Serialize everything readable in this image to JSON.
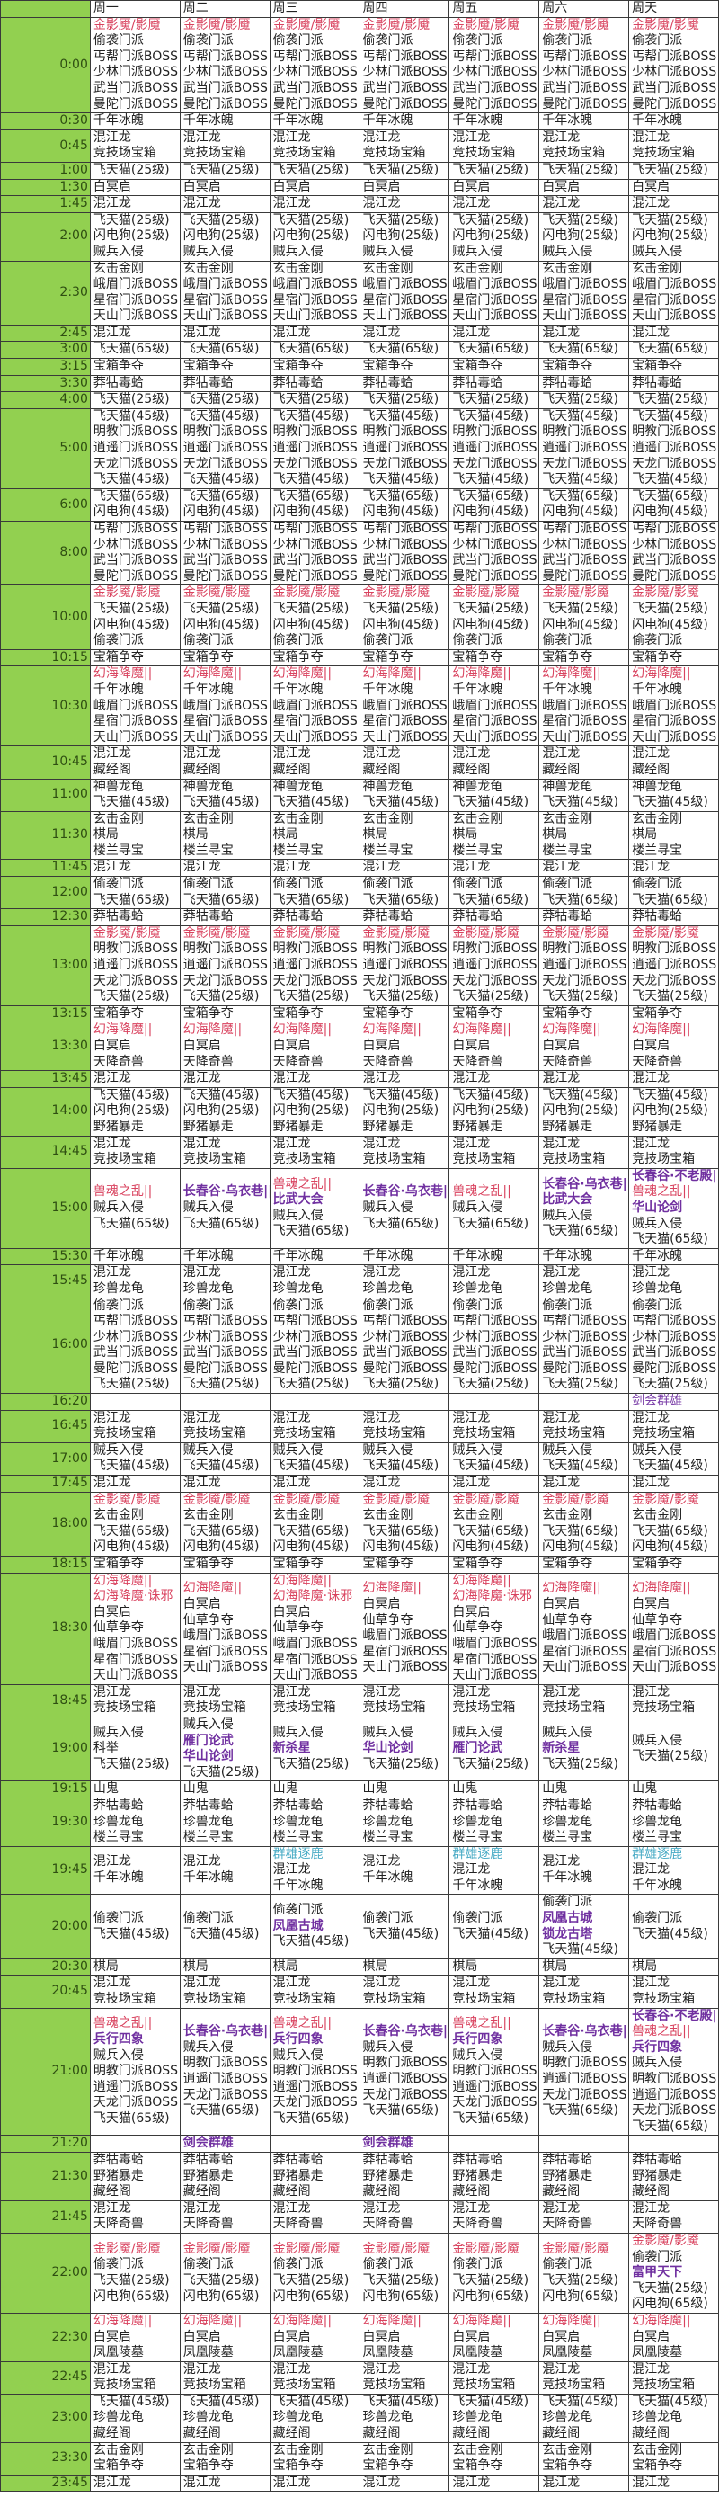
{
  "header": {
    "days": [
      "周一",
      "周二",
      "周三",
      "周四",
      "周五",
      "周六",
      "周天"
    ]
  },
  "colors": {
    "red": "#d9435f",
    "purple": "#7030a0",
    "teal": "#4bacc6",
    "time_column": "#92d050"
  },
  "rows": [
    {
      "time": "0:00",
      "all": [
        {
          "text": "金影魇/影魇",
          "color": "red"
        },
        "偷袭门派",
        "丐帮门派BOSS",
        "少林门派BOSS",
        "武当门派BOSS",
        "曼陀门派BOSS"
      ]
    },
    {
      "time": "0:30",
      "all": [
        "千年冰魄"
      ]
    },
    {
      "time": "0:45",
      "all": [
        "混江龙",
        "竞技场宝箱"
      ]
    },
    {
      "time": "1:00",
      "all": [
        "飞天猫(25级)"
      ]
    },
    {
      "time": "1:30",
      "all": [
        "白冥启"
      ]
    },
    {
      "time": "1:45",
      "all": [
        "混江龙"
      ]
    },
    {
      "time": "2:00",
      "all": [
        "飞天猫(25级)",
        "闪电狗(25级)",
        "贼兵入侵"
      ]
    },
    {
      "time": "2:30",
      "all": [
        "玄击金刚",
        "峨眉门派BOSS",
        "星宿门派BOSS",
        "天山门派BOSS"
      ]
    },
    {
      "time": "2:45",
      "all": [
        "混江龙"
      ]
    },
    {
      "time": "3:00",
      "all": [
        "飞天猫(65级)"
      ]
    },
    {
      "time": "3:15",
      "all": [
        "宝箱争夺"
      ]
    },
    {
      "time": "3:30",
      "all": [
        "莽牯毒蛤"
      ]
    },
    {
      "time": "4:00",
      "all": [
        "飞天猫(25级)"
      ]
    },
    {
      "time": "5:00",
      "all": [
        "飞天猫(45级)",
        "明教门派BOSS",
        "逍遥门派BOSS",
        "天龙门派BOSS",
        "飞天猫(45级)"
      ]
    },
    {
      "time": "6:00",
      "all": [
        "飞天猫(65级)",
        "闪电狗(45级)"
      ]
    },
    {
      "time": "8:00",
      "all": [
        "丐帮门派BOSS",
        "少林门派BOSS",
        "武当门派BOSS",
        "曼陀门派BOSS"
      ]
    },
    {
      "time": "10:00",
      "all": [
        {
          "text": "金影魇/影魇",
          "color": "red"
        },
        "飞天猫(25级)",
        "闪电狗(45级)",
        "偷袭门派"
      ]
    },
    {
      "time": "10:15",
      "all": [
        "宝箱争夺"
      ]
    },
    {
      "time": "10:30",
      "all": [
        {
          "text": "幻海降魔||",
          "color": "red"
        },
        "千年冰魄",
        "峨眉门派BOSS",
        "星宿门派BOSS",
        "天山门派BOSS"
      ]
    },
    {
      "time": "10:45",
      "all": [
        "混江龙",
        "藏经阁"
      ]
    },
    {
      "time": "11:00",
      "all": [
        "神兽龙龟",
        "飞天猫(45级)"
      ]
    },
    {
      "time": "11:30",
      "all": [
        "玄击金刚",
        "棋局",
        "楼兰寻宝"
      ]
    },
    {
      "time": "11:45",
      "all": [
        "混江龙"
      ]
    },
    {
      "time": "12:00",
      "all": [
        "偷袭门派",
        "飞天猫(65级)"
      ]
    },
    {
      "time": "12:30",
      "all": [
        "莽牯毒蛤"
      ]
    },
    {
      "time": "13:00",
      "all": [
        {
          "text": "金影魇/影魇",
          "color": "red"
        },
        "明教门派BOSS",
        "逍遥门派BOSS",
        "天龙门派BOSS",
        "飞天猫(25级)"
      ]
    },
    {
      "time": "13:15",
      "all": [
        "宝箱争夺"
      ]
    },
    {
      "time": "13:30",
      "all": [
        {
          "text": "幻海降魔||",
          "color": "red"
        },
        "白冥启",
        "天降奇兽"
      ]
    },
    {
      "time": "13:45",
      "all": [
        "混江龙"
      ]
    },
    {
      "time": "14:00",
      "all": [
        "飞天猫(45级)",
        "闪电狗(25级)",
        "野猪暴走"
      ]
    },
    {
      "time": "14:45",
      "all": [
        "混江龙",
        "竞技场宝箱"
      ]
    },
    {
      "time": "15:00",
      "days": [
        [
          {
            "text": "兽魂之乱||",
            "color": "red"
          },
          "贼兵入侵",
          "飞天猫(65级)"
        ],
        [
          {
            "text": "长春谷·乌衣巷||",
            "color": "purple"
          },
          "贼兵入侵",
          "飞天猫(65级)"
        ],
        [
          {
            "text": "兽魂之乱||",
            "color": "red"
          },
          {
            "text": "比武大会",
            "color": "purple"
          },
          "贼兵入侵",
          "飞天猫(65级)"
        ],
        [
          {
            "text": "长春谷·乌衣巷||",
            "color": "purple"
          },
          "贼兵入侵",
          "飞天猫(65级)"
        ],
        [
          {
            "text": "兽魂之乱||",
            "color": "red"
          },
          "贼兵入侵",
          "飞天猫(65级)"
        ],
        [
          {
            "text": "长春谷·乌衣巷||",
            "color": "purple"
          },
          {
            "text": "比武大会",
            "color": "purple"
          },
          "贼兵入侵",
          "飞天猫(65级)"
        ],
        [
          {
            "text": "长春谷·不老殿||",
            "color": "purple"
          },
          {
            "text": "兽魂之乱||",
            "color": "red"
          },
          {
            "text": "华山论剑",
            "color": "purple"
          },
          "贼兵入侵",
          "飞天猫(65级)"
        ]
      ]
    },
    {
      "time": "15:30",
      "all": [
        "千年冰魄"
      ]
    },
    {
      "time": "15:45",
      "all": [
        "混江龙",
        "珍兽龙龟"
      ]
    },
    {
      "time": "16:00",
      "all": [
        "偷袭门派",
        "丐帮门派BOSS",
        "少林门派BOSS",
        "武当门派BOSS",
        "曼陀门派BOSS",
        "飞天猫(25级)"
      ]
    },
    {
      "time": "16:20",
      "days": [
        [],
        [],
        [],
        [],
        [],
        [],
        [
          {
            "text": "剑会群雄",
            "color": "purple-light"
          }
        ]
      ]
    },
    {
      "time": "16:45",
      "all": [
        "混江龙",
        "竞技场宝箱"
      ]
    },
    {
      "time": "17:00",
      "all": [
        "贼兵入侵",
        "飞天猫(45级)"
      ]
    },
    {
      "time": "17:45",
      "all": [
        "混江龙"
      ]
    },
    {
      "time": "18:00",
      "all": [
        {
          "text": "金影魇/影魇",
          "color": "red"
        },
        "玄击金刚",
        "飞天猫(65级)",
        "闪电狗(45级)"
      ]
    },
    {
      "time": "18:15",
      "all": [
        "宝箱争夺"
      ]
    },
    {
      "time": "18:30",
      "days": [
        [
          {
            "text": "幻海降魔||",
            "color": "red"
          },
          {
            "text": "幻海降魔·诛邪",
            "color": "red"
          },
          "白冥启",
          "仙草争夺",
          "峨眉门派BOSS",
          "星宿门派BOSS",
          "天山门派BOSS"
        ],
        [
          {
            "text": "幻海降魔||",
            "color": "red"
          },
          "白冥启",
          "仙草争夺",
          "峨眉门派BOSS",
          "星宿门派BOSS",
          "天山门派BOSS"
        ],
        [
          {
            "text": "幻海降魔||",
            "color": "red"
          },
          {
            "text": "幻海降魔·诛邪",
            "color": "red"
          },
          "白冥启",
          "仙草争夺",
          "峨眉门派BOSS",
          "星宿门派BOSS",
          "天山门派BOSS"
        ],
        [
          {
            "text": "幻海降魔||",
            "color": "red"
          },
          "白冥启",
          "仙草争夺",
          "峨眉门派BOSS",
          "星宿门派BOSS",
          "天山门派BOSS"
        ],
        [
          {
            "text": "幻海降魔||",
            "color": "red"
          },
          {
            "text": "幻海降魔·诛邪",
            "color": "red"
          },
          "白冥启",
          "仙草争夺",
          "峨眉门派BOSS",
          "星宿门派BOSS",
          "天山门派BOSS"
        ],
        [
          {
            "text": "幻海降魔||",
            "color": "red"
          },
          "白冥启",
          "仙草争夺",
          "峨眉门派BOSS",
          "星宿门派BOSS",
          "天山门派BOSS"
        ],
        [
          {
            "text": "幻海降魔||",
            "color": "red"
          },
          "白冥启",
          "仙草争夺",
          "峨眉门派BOSS",
          "星宿门派BOSS",
          "天山门派BOSS"
        ]
      ]
    },
    {
      "time": "18:45",
      "all": [
        "混江龙",
        "竞技场宝箱"
      ]
    },
    {
      "time": "19:00",
      "days": [
        [
          "贼兵入侵",
          "科举",
          "飞天猫(25级)"
        ],
        [
          "贼兵入侵",
          {
            "text": "雁门论武",
            "color": "purple"
          },
          {
            "text": "华山论剑",
            "color": "purple"
          },
          "飞天猫(25级)"
        ],
        [
          "贼兵入侵",
          {
            "text": "新杀星",
            "color": "purple"
          },
          "飞天猫(25级)"
        ],
        [
          "贼兵入侵",
          {
            "text": "华山论剑",
            "color": "purple"
          },
          "飞天猫(25级)"
        ],
        [
          "贼兵入侵",
          {
            "text": "雁门论武",
            "color": "purple"
          },
          "飞天猫(25级)"
        ],
        [
          "贼兵入侵",
          {
            "text": "新杀星",
            "color": "purple"
          },
          "飞天猫(25级)"
        ],
        [
          "贼兵入侵",
          "飞天猫(25级)"
        ]
      ]
    },
    {
      "time": "19:15",
      "all": [
        "山鬼"
      ]
    },
    {
      "time": "19:30",
      "all": [
        "莽牯毒蛤",
        "珍兽龙龟",
        "楼兰寻宝"
      ]
    },
    {
      "time": "19:45",
      "days": [
        [
          "混江龙",
          "千年冰魄"
        ],
        [
          "混江龙",
          "千年冰魄"
        ],
        [
          {
            "text": "群雄逐鹿",
            "color": "teal"
          },
          "混江龙",
          "千年冰魄"
        ],
        [
          "混江龙",
          "千年冰魄"
        ],
        [
          {
            "text": "群雄逐鹿",
            "color": "teal"
          },
          "混江龙",
          "千年冰魄"
        ],
        [
          "混江龙",
          "千年冰魄"
        ],
        [
          {
            "text": "群雄逐鹿",
            "color": "teal"
          },
          "混江龙",
          "千年冰魄"
        ]
      ]
    },
    {
      "time": "20:00",
      "days": [
        [
          "偷袭门派",
          "飞天猫(45级)"
        ],
        [
          "偷袭门派",
          "飞天猫(45级)"
        ],
        [
          "偷袭门派",
          {
            "text": "凤凰古城",
            "color": "purple"
          },
          "飞天猫(45级)"
        ],
        [
          "偷袭门派",
          "飞天猫(45级)"
        ],
        [
          "偷袭门派",
          "飞天猫(45级)"
        ],
        [
          "偷袭门派",
          {
            "text": "凤凰古城",
            "color": "purple"
          },
          {
            "text": "锁龙古塔",
            "color": "purple"
          },
          "飞天猫(45级)"
        ],
        [
          "偷袭门派",
          "飞天猫(45级)"
        ]
      ]
    },
    {
      "time": "20:30",
      "all": [
        "棋局"
      ]
    },
    {
      "time": "20:45",
      "all": [
        "混江龙",
        "竞技场宝箱"
      ]
    },
    {
      "time": "21:00",
      "days": [
        [
          {
            "text": "兽魂之乱||",
            "color": "red"
          },
          {
            "text": "兵行四象",
            "color": "purple"
          },
          "贼兵入侵",
          "明教门派BOSS",
          "逍遥门派BOSS",
          "天龙门派BOSS",
          "飞天猫(65级)"
        ],
        [
          {
            "text": "长春谷·乌衣巷||",
            "color": "purple"
          },
          "贼兵入侵",
          "明教门派BOSS",
          "逍遥门派BOSS",
          "天龙门派BOSS",
          "飞天猫(65级)"
        ],
        [
          {
            "text": "兽魂之乱||",
            "color": "red"
          },
          {
            "text": "兵行四象",
            "color": "purple"
          },
          "贼兵入侵",
          "明教门派BOSS",
          "逍遥门派BOSS",
          "天龙门派BOSS",
          "飞天猫(65级)"
        ],
        [
          {
            "text": "长春谷·乌衣巷||",
            "color": "purple"
          },
          "贼兵入侵",
          "明教门派BOSS",
          "逍遥门派BOSS",
          "天龙门派BOSS",
          "飞天猫(65级)"
        ],
        [
          {
            "text": "兽魂之乱||",
            "color": "red"
          },
          {
            "text": "兵行四象",
            "color": "purple"
          },
          "贼兵入侵",
          "明教门派BOSS",
          "逍遥门派BOSS",
          "天龙门派BOSS",
          "飞天猫(65级)"
        ],
        [
          {
            "text": "长春谷·乌衣巷||",
            "color": "purple"
          },
          "贼兵入侵",
          "明教门派BOSS",
          "逍遥门派BOSS",
          "天龙门派BOSS",
          "飞天猫(65级)"
        ],
        [
          {
            "text": "长春谷·不老殿||",
            "color": "purple"
          },
          {
            "text": "兽魂之乱||",
            "color": "red"
          },
          {
            "text": "兵行四象",
            "color": "purple"
          },
          "贼兵入侵",
          "明教门派BOSS",
          "逍遥门派BOSS",
          "天龙门派BOSS",
          "飞天猫(65级)"
        ]
      ]
    },
    {
      "time": "21:20",
      "days": [
        [],
        [
          {
            "text": "剑会群雄",
            "color": "purple"
          }
        ],
        [],
        [
          {
            "text": "剑会群雄",
            "color": "purple"
          }
        ],
        [],
        [],
        []
      ]
    },
    {
      "time": "21:30",
      "all": [
        "莽牯毒蛤",
        "野猪暴走",
        "藏经阁"
      ]
    },
    {
      "time": "21:45",
      "all": [
        "混江龙",
        "天降奇兽"
      ]
    },
    {
      "time": "22:00",
      "days": [
        [
          {
            "text": "金影魇/影魇",
            "color": "red"
          },
          "偷袭门派",
          "飞天猫(25级)",
          "闪电狗(65级)"
        ],
        [
          {
            "text": "金影魇/影魇",
            "color": "red"
          },
          "偷袭门派",
          "飞天猫(25级)",
          "闪电狗(65级)"
        ],
        [
          {
            "text": "金影魇/影魇",
            "color": "red"
          },
          "偷袭门派",
          "飞天猫(25级)",
          "闪电狗(65级)"
        ],
        [
          {
            "text": "金影魇/影魇",
            "color": "red"
          },
          "偷袭门派",
          "飞天猫(25级)",
          "闪电狗(65级)"
        ],
        [
          {
            "text": "金影魇/影魇",
            "color": "red"
          },
          "偷袭门派",
          "飞天猫(25级)",
          "闪电狗(65级)"
        ],
        [
          {
            "text": "金影魇/影魇",
            "color": "red"
          },
          "偷袭门派",
          "飞天猫(25级)",
          "闪电狗(65级)"
        ],
        [
          {
            "text": "金影魇/影魇",
            "color": "red"
          },
          "偷袭门派",
          {
            "text": "富甲天下",
            "color": "purple"
          },
          "飞天猫(25级)",
          "闪电狗(65级)"
        ]
      ]
    },
    {
      "time": "22:30",
      "all": [
        {
          "text": "幻海降魔||",
          "color": "red"
        },
        "白冥启",
        "凤凰陵墓"
      ]
    },
    {
      "time": "22:45",
      "all": [
        "混江龙",
        "竞技场宝箱"
      ]
    },
    {
      "time": "23:00",
      "all": [
        "飞天猫(45级)",
        "珍兽龙龟",
        "藏经阁"
      ]
    },
    {
      "time": "23:30",
      "all": [
        "玄击金刚",
        "宝箱争夺"
      ]
    },
    {
      "time": "23:45",
      "all": [
        "混江龙"
      ]
    }
  ]
}
